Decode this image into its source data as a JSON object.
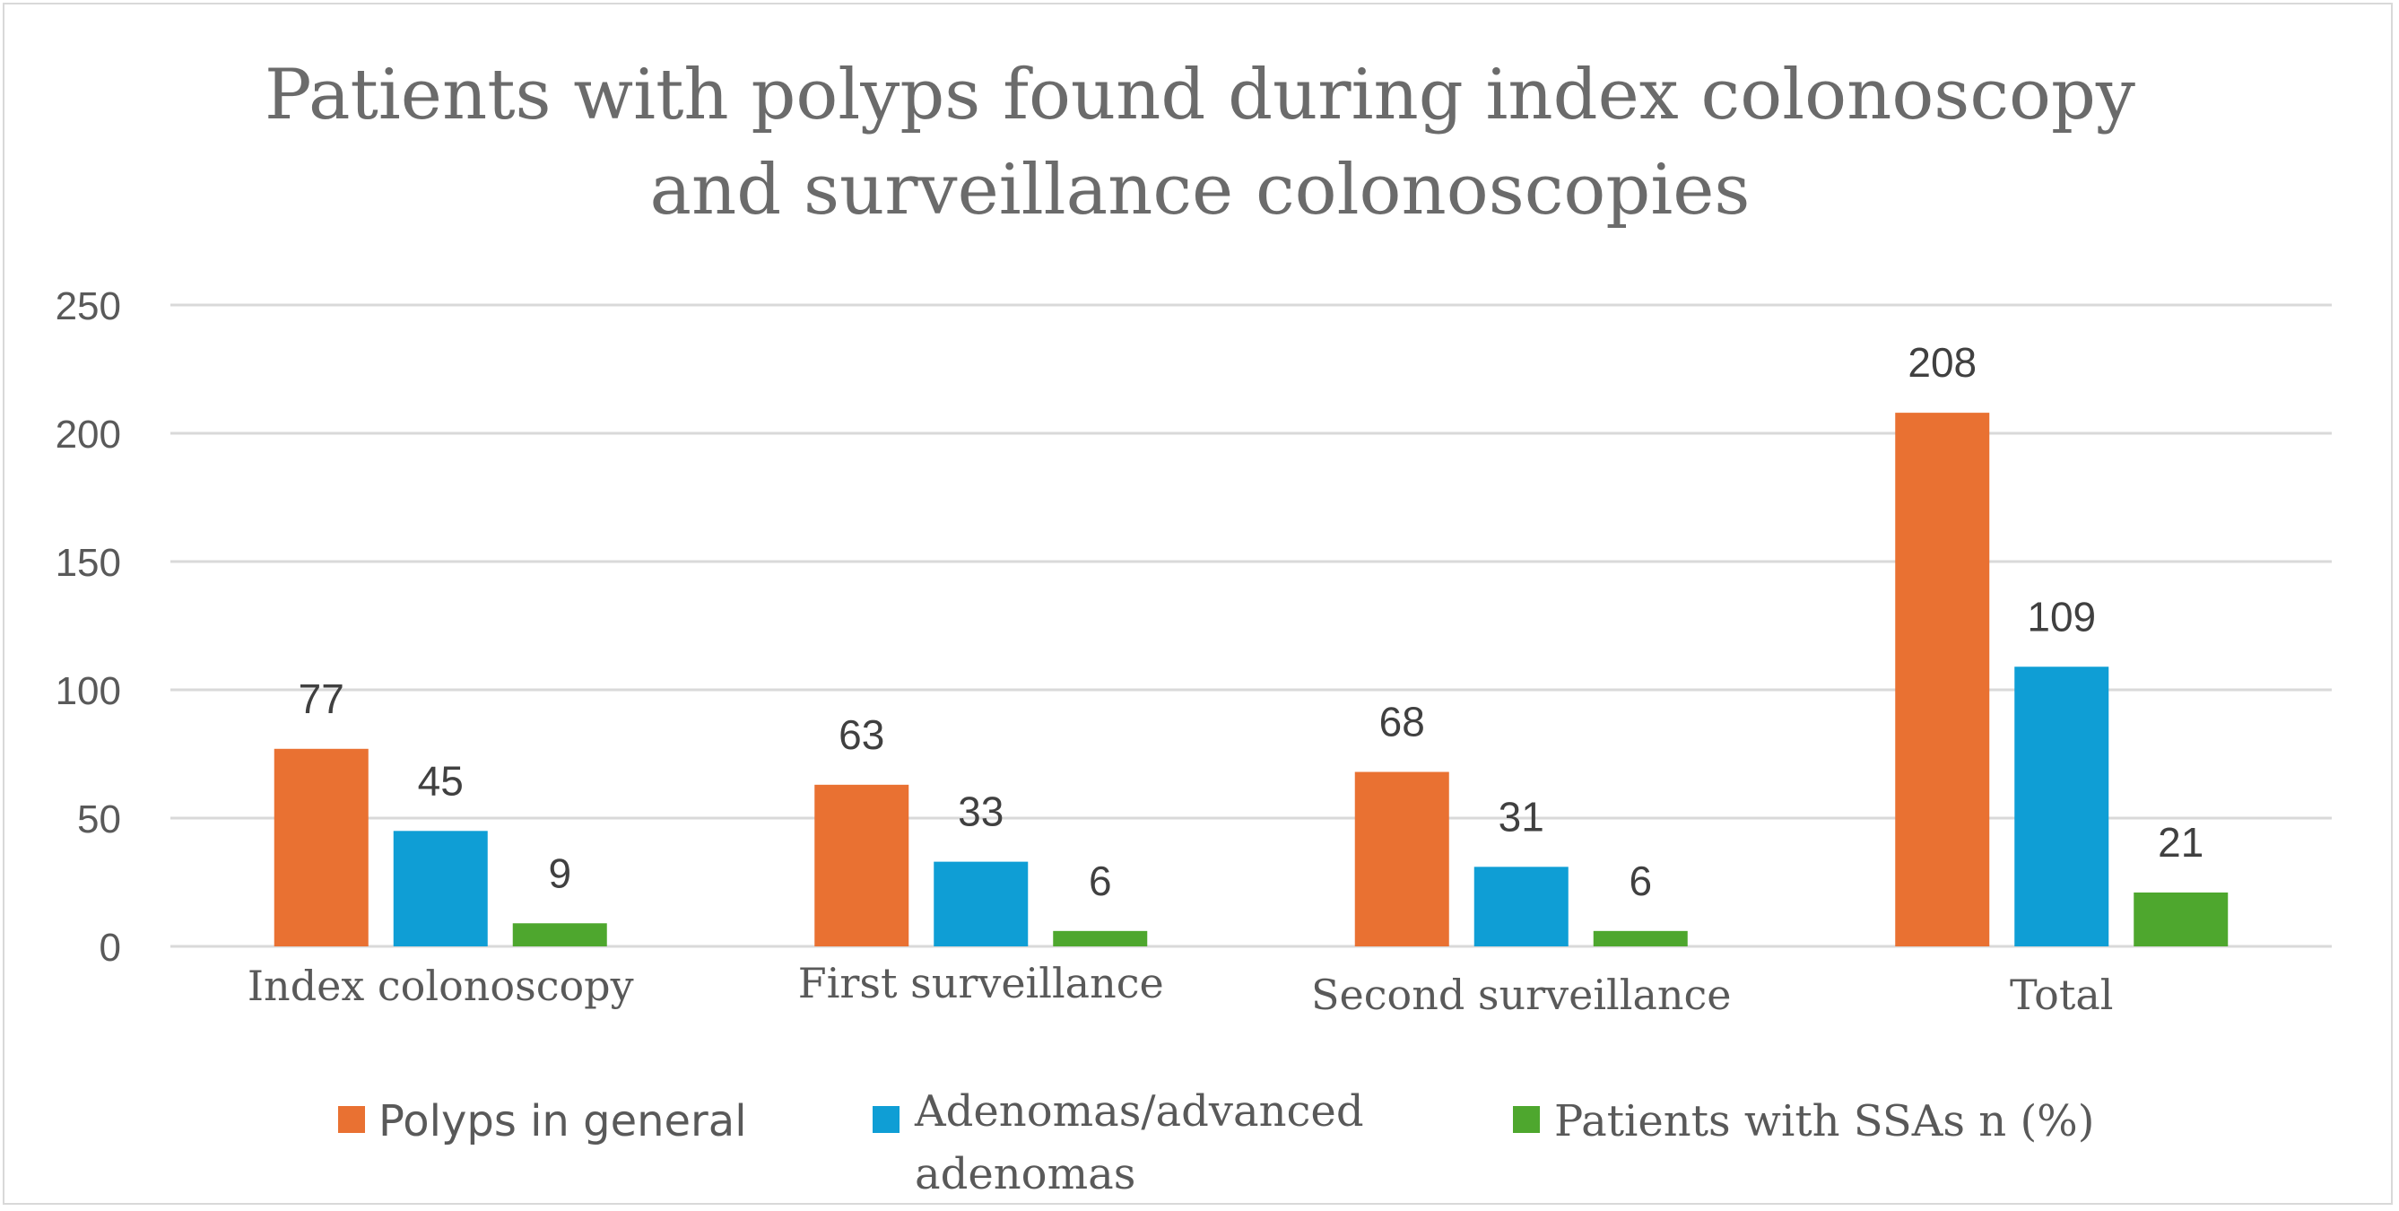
{
  "chart_data": {
    "type": "bar",
    "title": "Patients with polyps found during index colonoscopy and surveillance colonoscopies",
    "title_lines": [
      "Patients with polyps found during index colonoscopy",
      "and surveillance colonoscopies"
    ],
    "categories": [
      "Index colonoscopy",
      "First surveillance",
      "Second surveillance",
      "Total"
    ],
    "series": [
      {
        "name": "Polyps in general",
        "values": [
          77,
          63,
          68,
          208
        ],
        "color": "#e97132"
      },
      {
        "name": "Adenomas/advanced adenomas",
        "values": [
          45,
          33,
          31,
          109
        ],
        "color": "#0f9ed5"
      },
      {
        "name": "Patients with SSAs n (%)",
        "values": [
          9,
          6,
          6,
          21
        ],
        "color": "#4ea72e"
      }
    ],
    "yticks": [
      "0",
      "50",
      "100",
      "150",
      "200",
      "250"
    ],
    "ylim": [
      0,
      250
    ],
    "xlabel": "",
    "ylabel": "",
    "grid": true,
    "legend_position": "bottom",
    "data_labels": true
  }
}
